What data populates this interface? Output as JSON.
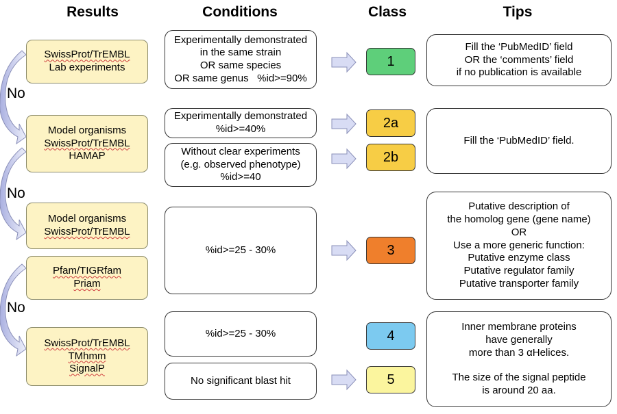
{
  "headers": {
    "results": "Results",
    "conditions": "Conditions",
    "class": "Class",
    "tips": "Tips"
  },
  "results": [
    {
      "line1": "SwissProt/TrEMBL",
      "line2": "Lab experiments"
    },
    {
      "line1": "Model organisms",
      "line2": "SwissProt/TrEMBL",
      "line3": "HAMAP"
    },
    {
      "line1": "Model organisms",
      "line2": "SwissProt/TrEMBL"
    },
    {
      "line1": "Pfam/TIGRfam",
      "line2": "Priam"
    },
    {
      "line1": "SwissProt/TrEMBL",
      "line2": "TMhmm",
      "line3": "SignalP"
    }
  ],
  "no_labels": [
    "No",
    "No",
    "No"
  ],
  "conditions": [
    {
      "lines": [
        "Experimentally demonstrated",
        "in the same strain",
        "OR same species",
        "OR same genus   %id>=90%"
      ]
    },
    {
      "lines": [
        "Experimentally demonstrated",
        "%id>=40%"
      ]
    },
    {
      "lines": [
        "Without clear experiments",
        "(e.g. observed phenotype)",
        "%id>=40"
      ]
    },
    {
      "lines": [
        "%id>=25 - 30%"
      ]
    },
    {
      "lines": [
        "%id>=25 - 30%"
      ]
    },
    {
      "lines": [
        "No significant blast hit"
      ]
    }
  ],
  "classes": [
    {
      "label": "1",
      "color": "#5ecf7a"
    },
    {
      "label": "2a",
      "color": "#f7cd45"
    },
    {
      "label": "2b",
      "color": "#f7cd45"
    },
    {
      "label": "3",
      "color": "#ef7f2c"
    },
    {
      "label": "4",
      "color": "#7ccaf0"
    },
    {
      "label": "5",
      "color": "#fbf59e"
    }
  ],
  "tips": [
    {
      "lines": [
        "Fill the ‘PubMedID’ field",
        "OR the ‘comments’ field",
        "if no publication is available"
      ]
    },
    {
      "lines": [
        "Fill the ‘PubMedID’ field."
      ]
    },
    {
      "lines": [
        "Putative description of",
        "the homolog gene (gene name)",
        "OR",
        "Use a more generic function:",
        "Putative enzyme class",
        "Putative regulator family",
        "Putative transporter family"
      ]
    },
    {
      "lines": [
        "Inner membrane proteins",
        "have generally",
        "more than 3 αHelices.",
        "",
        "The size of the signal peptide",
        "is around 20 aa."
      ]
    }
  ],
  "colors": {
    "result_fill": "#fdf3c4",
    "arrow_fill": "#d8dcf4",
    "arrow_stroke": "#8a8fb8"
  }
}
